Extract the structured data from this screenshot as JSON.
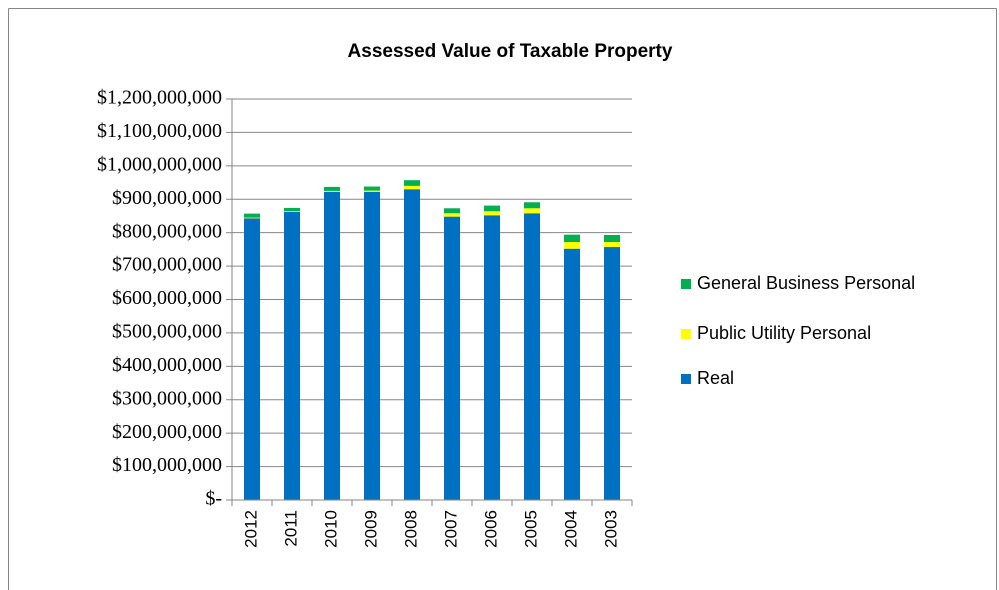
{
  "chart_data": {
    "type": "stacked_bar",
    "title": "Assessed Value of Taxable Property",
    "categories": [
      "2012",
      "2011",
      "2010",
      "2009",
      "2008",
      "2007",
      "2006",
      "2005",
      "2004",
      "2003"
    ],
    "series": [
      {
        "name": "Real",
        "color": "#0070c0",
        "values": [
          843000000,
          862000000,
          922000000,
          922000000,
          930000000,
          848000000,
          852000000,
          858000000,
          752000000,
          757000000
        ]
      },
      {
        "name": "Public Utility Personal",
        "color": "#ffff00",
        "values": [
          2000000,
          2000000,
          3000000,
          4000000,
          10000000,
          10000000,
          12000000,
          15000000,
          20000000,
          15000000
        ]
      },
      {
        "name": "General Business Personal",
        "color": "#00b050",
        "values": [
          12000000,
          10000000,
          12000000,
          12000000,
          17000000,
          15000000,
          17000000,
          18000000,
          22000000,
          21000000
        ]
      }
    ],
    "ylim": [
      0,
      1200000000
    ],
    "yticks": [
      {
        "value": 0,
        "label": "$-"
      },
      {
        "value": 100000000,
        "label": "$100,000,000"
      },
      {
        "value": 200000000,
        "label": "$200,000,000"
      },
      {
        "value": 300000000,
        "label": "$300,000,000"
      },
      {
        "value": 400000000,
        "label": "$400,000,000"
      },
      {
        "value": 500000000,
        "label": "$500,000,000"
      },
      {
        "value": 600000000,
        "label": "$600,000,000"
      },
      {
        "value": 700000000,
        "label": "$700,000,000"
      },
      {
        "value": 800000000,
        "label": "$800,000,000"
      },
      {
        "value": 900000000,
        "label": "$900,000,000"
      },
      {
        "value": 1000000000,
        "label": "$1,000,000,000"
      },
      {
        "value": 1100000000,
        "label": "$1,100,000,000"
      },
      {
        "value": 1200000000,
        "label": "$1,200,000,000"
      }
    ],
    "grid": true,
    "legend": "right"
  }
}
